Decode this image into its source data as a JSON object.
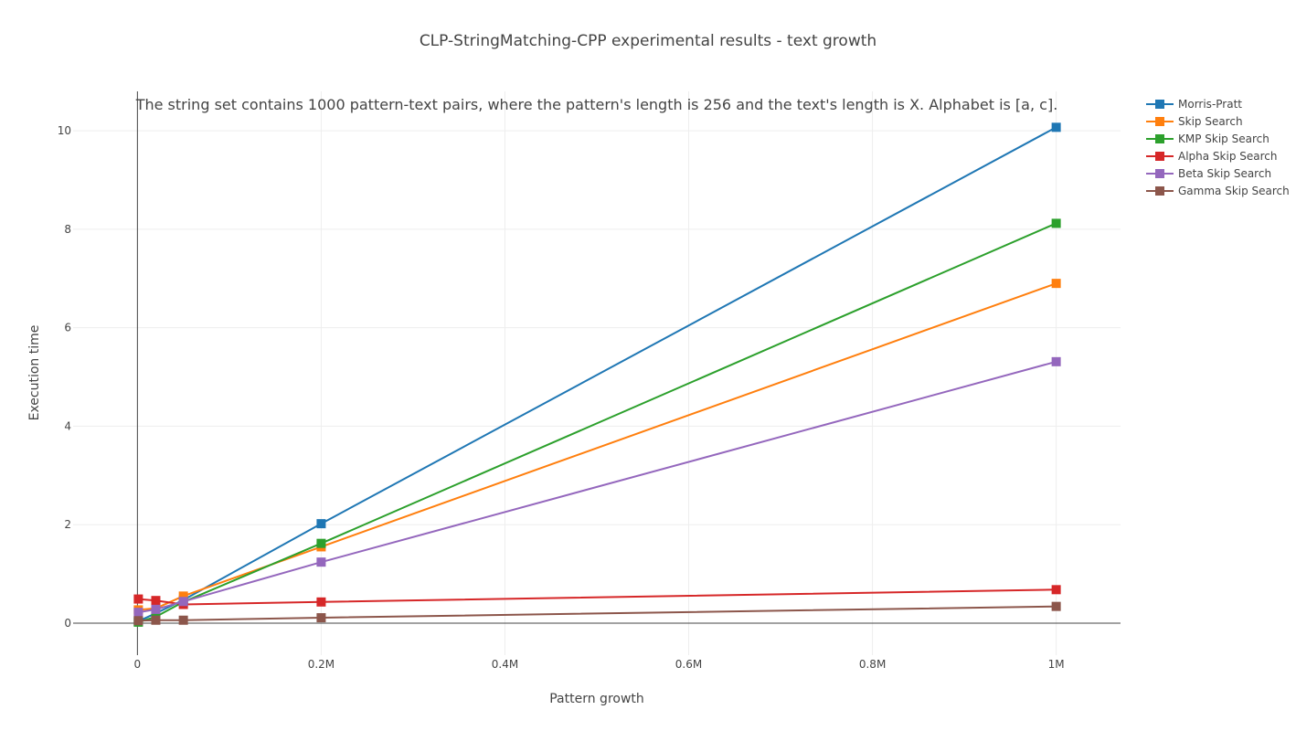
{
  "chart_data": {
    "type": "line",
    "title": "CLP-StringMatching-CPP experimental results - text growth",
    "annotation": "The string set contains 1000 pattern-text pairs, where the pattern's length is 256 and the text's length is X. Alphabet is [a, c].",
    "xlabel": "Pattern growth",
    "ylabel": "Execution time",
    "xlim": [
      -70000,
      1070000
    ],
    "ylim": [
      -0.65,
      10.8
    ],
    "x_ticks": [
      0,
      200000,
      400000,
      600000,
      800000,
      1000000
    ],
    "x_tick_labels": [
      "0",
      "0.2M",
      "0.4M",
      "0.6M",
      "0.8M",
      "1M"
    ],
    "y_ticks": [
      0,
      2,
      4,
      6,
      8,
      10
    ],
    "y_tick_labels": [
      "0",
      "2",
      "4",
      "6",
      "8",
      "10"
    ],
    "grid": true,
    "legend_position": "right",
    "x": [
      1000,
      20000,
      50000,
      200000,
      1000000
    ],
    "series": [
      {
        "name": "Morris-Pratt",
        "color": "#1f77b4",
        "values": [
          0.04,
          0.2,
          0.47,
          2.02,
          10.07
        ]
      },
      {
        "name": "Skip Search",
        "color": "#ff7f0e",
        "values": [
          0.27,
          0.3,
          0.55,
          1.55,
          6.9
        ]
      },
      {
        "name": "KMP Skip Search",
        "color": "#2ca02c",
        "values": [
          0.02,
          0.13,
          0.43,
          1.62,
          8.12
        ]
      },
      {
        "name": "Alpha Skip Search",
        "color": "#d62728",
        "values": [
          0.49,
          0.46,
          0.38,
          0.43,
          0.68
        ]
      },
      {
        "name": "Beta Skip Search",
        "color": "#9467bd",
        "values": [
          0.22,
          0.28,
          0.44,
          1.24,
          5.31
        ]
      },
      {
        "name": "Gamma Skip Search",
        "color": "#8c564b",
        "values": [
          0.05,
          0.06,
          0.06,
          0.11,
          0.34
        ]
      }
    ]
  }
}
